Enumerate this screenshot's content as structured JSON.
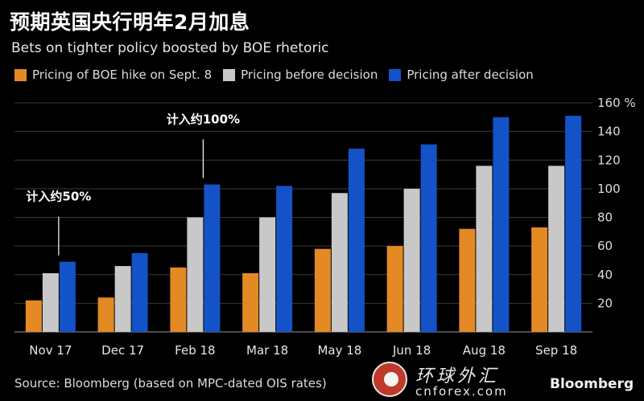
{
  "title": "预期英国央行明年2月加息",
  "subtitle": "Bets on tighter policy boosted by BOE rhetoric",
  "legend": [
    {
      "label": "Pricing of BOE hike on Sept. 8",
      "color": "#e38a25"
    },
    {
      "label": "Pricing before decision",
      "color": "#c8c8c8"
    },
    {
      "label": "Pricing after decision",
      "color": "#1452c8"
    }
  ],
  "chart_data": {
    "type": "bar",
    "categories": [
      "Nov 17",
      "Dec 17",
      "Feb 18",
      "Mar 18",
      "May 18",
      "Jun 18",
      "Aug 18",
      "Sep 18"
    ],
    "series": [
      {
        "name": "Pricing of BOE hike on Sept. 8",
        "color": "#e38a25",
        "values": [
          22,
          24,
          45,
          41,
          58,
          60,
          72,
          73
        ]
      },
      {
        "name": "Pricing before decision",
        "color": "#c8c8c8",
        "values": [
          41,
          46,
          80,
          80,
          97,
          100,
          116,
          116
        ]
      },
      {
        "name": "Pricing after decision",
        "color": "#1452c8",
        "values": [
          49,
          55,
          103,
          102,
          128,
          131,
          150,
          151
        ]
      }
    ],
    "y_ticks": [
      "20",
      "40",
      "60",
      "80",
      "100",
      "120",
      "140",
      "160 %"
    ],
    "ylim": [
      0,
      160
    ],
    "grid": true,
    "axis_side": "right",
    "annotations": [
      {
        "text": "计入约50%",
        "category": "Nov 17"
      },
      {
        "text": "计入约100%",
        "category": "Feb 18"
      }
    ]
  },
  "footer": {
    "source": "Source: Bloomberg (based on MPC-dated OIS rates)",
    "watermark_name": "环球外汇",
    "watermark_url": "cnforex.com",
    "brand": "Bloomberg"
  }
}
